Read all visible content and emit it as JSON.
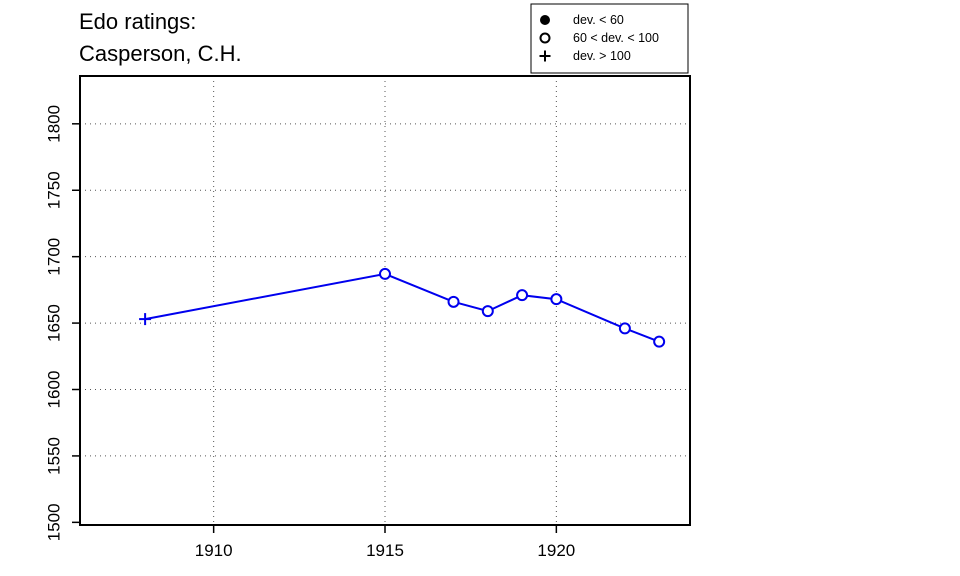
{
  "chart_data": {
    "type": "line",
    "title_lines": [
      "Edo ratings:",
      "Casperson, C.H."
    ],
    "xlabel": "",
    "ylabel": "",
    "xlim": [
      1906.1,
      1923.9
    ],
    "ylim": [
      1498,
      1836
    ],
    "x_ticks": [
      1910,
      1915,
      1920
    ],
    "y_ticks": [
      1500,
      1550,
      1600,
      1650,
      1700,
      1750,
      1800
    ],
    "grid": true,
    "legend_position": "top-right",
    "legend": [
      {
        "marker": "filled-circle",
        "label": "dev. < 60"
      },
      {
        "marker": "open-circle",
        "label": "60 < dev. < 100"
      },
      {
        "marker": "plus",
        "label": "dev. > 100"
      }
    ],
    "series_color": "#0000ee",
    "points": [
      {
        "x": 1908,
        "y": 1653,
        "marker": "plus"
      },
      {
        "x": 1915,
        "y": 1687,
        "marker": "open-circle"
      },
      {
        "x": 1917,
        "y": 1666,
        "marker": "open-circle"
      },
      {
        "x": 1918,
        "y": 1659,
        "marker": "open-circle"
      },
      {
        "x": 1919,
        "y": 1671,
        "marker": "open-circle"
      },
      {
        "x": 1920,
        "y": 1668,
        "marker": "open-circle"
      },
      {
        "x": 1922,
        "y": 1646,
        "marker": "open-circle"
      },
      {
        "x": 1923,
        "y": 1636,
        "marker": "open-circle"
      }
    ]
  }
}
